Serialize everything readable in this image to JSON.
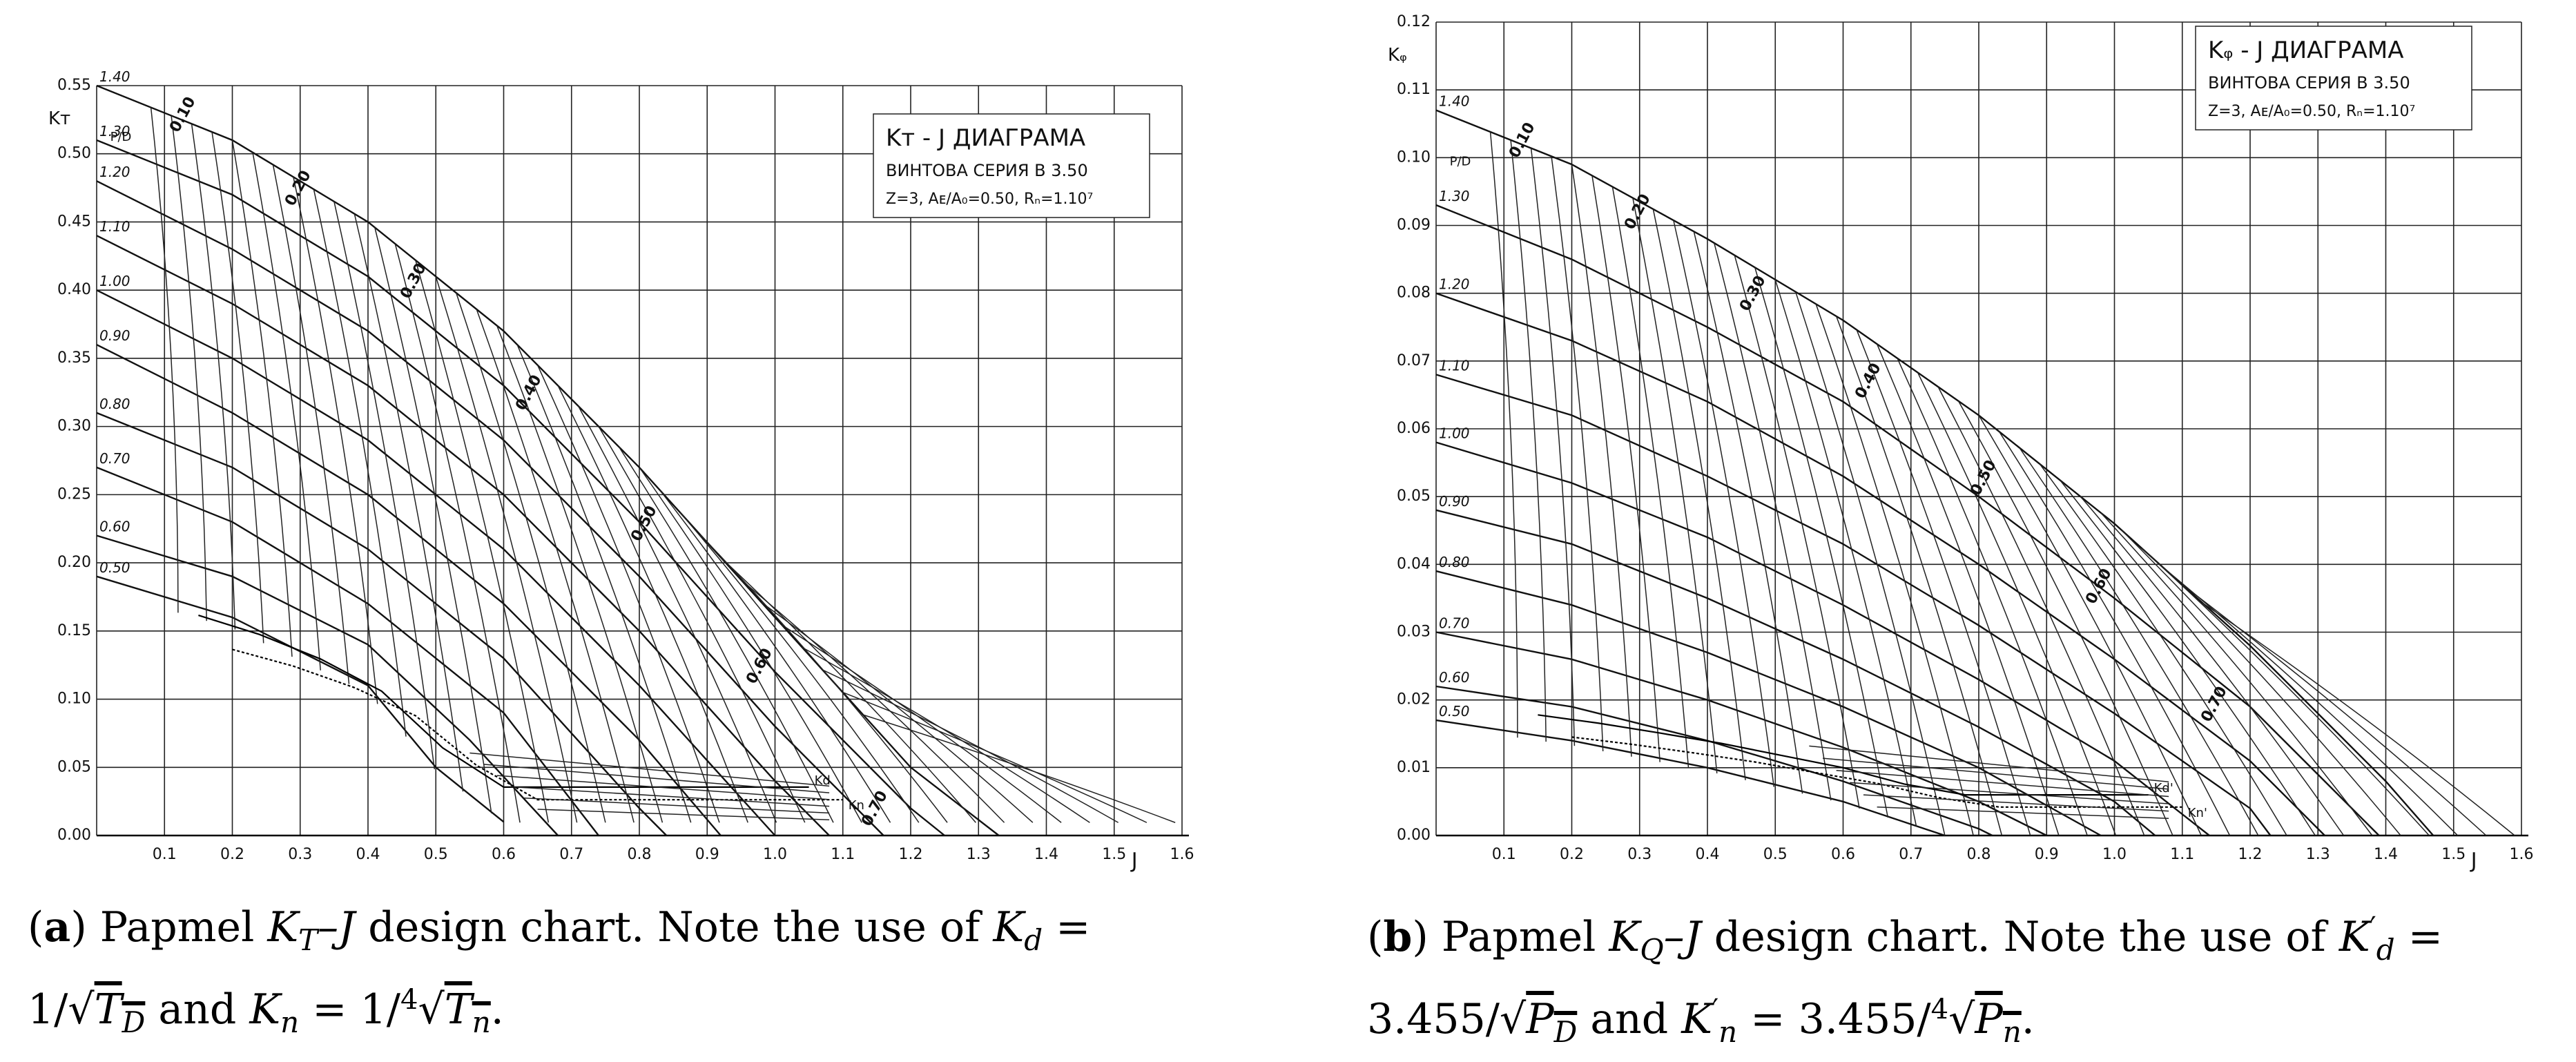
{
  "charts": [
    {
      "id": "a",
      "caption": {
        "letter": "a",
        "text_1": " Papmel ",
        "k": "K",
        "k_sub": "T",
        "dash_j": "–J",
        "text_2": " design chart. Note the use of ",
        "kd": "K",
        "kd_sub": "d",
        "eq1": " = ",
        "line2_a": "1/",
        "root_arg_1": "T",
        "root_arg_1_sub": "D",
        "and": " and ",
        "kn": "K",
        "kn_sub": "n",
        "eq2": " = 1/",
        "root4_index": "4",
        "root_arg_2": "T",
        "root_arg_2_sub": "n",
        "end": "."
      },
      "legend": {
        "title": "Kᴛ - J  ДИАГРАМА",
        "line2": "ВИНТОВА  СЕРИЯ   B 3.50",
        "line3": "Z=3,  Aᴇ/A₀=0.50,  Rₙ=1.10⁷"
      },
      "chart_data": {
        "type": "line",
        "xlabel": "J",
        "ylabel": "Kᴛ",
        "xlim": [
          0,
          1.6
        ],
        "ylim": [
          0,
          0.55
        ],
        "x_ticks": [
          "0.1",
          "0.2",
          "0.3",
          "0.4",
          "0.5",
          "0.6",
          "0.7",
          "0.8",
          "0.9",
          "1.0",
          "1.1",
          "1.2",
          "1.3",
          "1.4",
          "1.5",
          "1.6"
        ],
        "y_ticks": [
          "0.00",
          "0.05",
          "0.10",
          "0.15",
          "0.20",
          "0.25",
          "0.30",
          "0.35",
          "0.40",
          "0.45",
          "0.50",
          "0.55"
        ],
        "pd_label": "P/D",
        "pd_values": [
          "0.50",
          "0.60",
          "0.70",
          "0.80",
          "0.90",
          "1.00",
          "1.10",
          "1.20",
          "1.30",
          "1.40"
        ],
        "eta_labels": [
          "0.10",
          "0.20",
          "0.30",
          "0.40",
          "0.50",
          "0.60",
          "0.70"
        ],
        "kd_label": "Kd",
        "kn_label": "Kn",
        "series": [
          {
            "name": "0.50",
            "values": [
              [
                0.0,
                0.19
              ],
              [
                0.2,
                0.16
              ],
              [
                0.4,
                0.11
              ],
              [
                0.5,
                0.05
              ],
              [
                0.6,
                0.01
              ]
            ]
          },
          {
            "name": "0.60",
            "values": [
              [
                0.0,
                0.22
              ],
              [
                0.2,
                0.19
              ],
              [
                0.4,
                0.14
              ],
              [
                0.55,
                0.07
              ],
              [
                0.68,
                0.0
              ]
            ]
          },
          {
            "name": "0.70",
            "values": [
              [
                0.0,
                0.27
              ],
              [
                0.2,
                0.23
              ],
              [
                0.4,
                0.17
              ],
              [
                0.6,
                0.09
              ],
              [
                0.74,
                0.0
              ]
            ]
          },
          {
            "name": "0.80",
            "values": [
              [
                0.0,
                0.31
              ],
              [
                0.2,
                0.27
              ],
              [
                0.4,
                0.21
              ],
              [
                0.6,
                0.13
              ],
              [
                0.8,
                0.02
              ],
              [
                0.84,
                0.0
              ]
            ]
          },
          {
            "name": "0.90",
            "values": [
              [
                0.0,
                0.36
              ],
              [
                0.2,
                0.31
              ],
              [
                0.4,
                0.25
              ],
              [
                0.6,
                0.17
              ],
              [
                0.8,
                0.07
              ],
              [
                0.92,
                0.0
              ]
            ]
          },
          {
            "name": "1.00",
            "values": [
              [
                0.0,
                0.4
              ],
              [
                0.2,
                0.35
              ],
              [
                0.4,
                0.29
              ],
              [
                0.6,
                0.21
              ],
              [
                0.8,
                0.11
              ],
              [
                1.0,
                0.0
              ]
            ]
          },
          {
            "name": "1.10",
            "values": [
              [
                0.0,
                0.44
              ],
              [
                0.2,
                0.39
              ],
              [
                0.4,
                0.33
              ],
              [
                0.6,
                0.25
              ],
              [
                0.8,
                0.15
              ],
              [
                1.0,
                0.04
              ],
              [
                1.08,
                0.0
              ]
            ]
          },
          {
            "name": "1.20",
            "values": [
              [
                0.0,
                0.48
              ],
              [
                0.2,
                0.43
              ],
              [
                0.4,
                0.37
              ],
              [
                0.6,
                0.29
              ],
              [
                0.8,
                0.19
              ],
              [
                1.0,
                0.08
              ],
              [
                1.16,
                0.0
              ]
            ]
          },
          {
            "name": "1.30",
            "values": [
              [
                0.0,
                0.51
              ],
              [
                0.2,
                0.47
              ],
              [
                0.4,
                0.41
              ],
              [
                0.6,
                0.33
              ],
              [
                0.8,
                0.23
              ],
              [
                1.0,
                0.12
              ],
              [
                1.2,
                0.02
              ],
              [
                1.25,
                0.0
              ]
            ]
          },
          {
            "name": "1.40",
            "values": [
              [
                0.0,
                0.55
              ],
              [
                0.2,
                0.51
              ],
              [
                0.4,
                0.45
              ],
              [
                0.6,
                0.37
              ],
              [
                0.8,
                0.27
              ],
              [
                1.0,
                0.16
              ],
              [
                1.2,
                0.05
              ],
              [
                1.33,
                0.0
              ]
            ]
          }
        ]
      }
    },
    {
      "id": "b",
      "caption": {
        "letter": "b",
        "text_1": " Papmel ",
        "k": "K",
        "k_sub": "Q",
        "dash_j": "–J",
        "text_2": " design chart. Note the use of ",
        "kd": "K",
        "kd_sub": "d",
        "kd_prime": "′",
        "eq1": " = ",
        "line2_a": "3.455/",
        "root_arg_1": "P",
        "root_arg_1_sub": "D",
        "and": " and ",
        "kn": "K",
        "kn_sub": "n",
        "kn_prime": "′",
        "eq2": " = 3.455/",
        "root4_index": "4",
        "root_arg_2": "P",
        "root_arg_2_sub": "n",
        "end": "."
      },
      "legend": {
        "title": "Kᵩ - J  ДИАГРАМА",
        "line2": "ВИНТОВА  СЕРИЯ   B 3.50",
        "line3": "Z=3,  Aᴇ/A₀=0.50,  Rₙ=1.10⁷"
      },
      "chart_data": {
        "type": "line",
        "xlabel": "J",
        "ylabel": "Kᵩ",
        "xlim": [
          0,
          1.6
        ],
        "ylim": [
          0,
          0.12
        ],
        "x_ticks": [
          "0.1",
          "0.2",
          "0.3",
          "0.4",
          "0.5",
          "0.6",
          "0.7",
          "0.8",
          "0.9",
          "1.0",
          "1.1",
          "1.2",
          "1.3",
          "1.4",
          "1.5",
          "1.6"
        ],
        "y_ticks": [
          "0.00",
          "0.01",
          "0.02",
          "0.03",
          "0.04",
          "0.05",
          "0.06",
          "0.07",
          "0.08",
          "0.09",
          "0.10",
          "0.11",
          "0.12"
        ],
        "pd_label": "P/D",
        "pd_values": [
          "0.50",
          "0.60",
          "0.70",
          "0.80",
          "0.90",
          "1.00",
          "1.10",
          "1.20",
          "1.30",
          "1.40"
        ],
        "eta_labels": [
          "0.10",
          "0.20",
          "0.30",
          "0.40",
          "0.50",
          "0.60",
          "0.70"
        ],
        "kd_label": "Kd'",
        "kn_label": "Kn'",
        "series": [
          {
            "name": "0.50",
            "values": [
              [
                0.0,
                0.017
              ],
              [
                0.2,
                0.014
              ],
              [
                0.4,
                0.01
              ],
              [
                0.6,
                0.005
              ],
              [
                0.75,
                0.0
              ]
            ]
          },
          {
            "name": "0.60",
            "values": [
              [
                0.0,
                0.022
              ],
              [
                0.2,
                0.019
              ],
              [
                0.4,
                0.014
              ],
              [
                0.6,
                0.008
              ],
              [
                0.8,
                0.001
              ],
              [
                0.82,
                0.0
              ]
            ]
          },
          {
            "name": "0.70",
            "values": [
              [
                0.0,
                0.03
              ],
              [
                0.2,
                0.026
              ],
              [
                0.4,
                0.02
              ],
              [
                0.6,
                0.013
              ],
              [
                0.8,
                0.005
              ],
              [
                0.9,
                0.0
              ]
            ]
          },
          {
            "name": "0.80",
            "values": [
              [
                0.0,
                0.039
              ],
              [
                0.2,
                0.034
              ],
              [
                0.4,
                0.027
              ],
              [
                0.6,
                0.019
              ],
              [
                0.8,
                0.01
              ],
              [
                0.98,
                0.0
              ]
            ]
          },
          {
            "name": "0.90",
            "values": [
              [
                0.0,
                0.048
              ],
              [
                0.2,
                0.043
              ],
              [
                0.4,
                0.035
              ],
              [
                0.6,
                0.026
              ],
              [
                0.8,
                0.016
              ],
              [
                1.0,
                0.005
              ],
              [
                1.06,
                0.0
              ]
            ]
          },
          {
            "name": "1.00",
            "values": [
              [
                0.0,
                0.058
              ],
              [
                0.2,
                0.052
              ],
              [
                0.4,
                0.044
              ],
              [
                0.6,
                0.034
              ],
              [
                0.8,
                0.023
              ],
              [
                1.0,
                0.011
              ],
              [
                1.14,
                0.0
              ]
            ]
          },
          {
            "name": "1.10",
            "values": [
              [
                0.0,
                0.068
              ],
              [
                0.2,
                0.062
              ],
              [
                0.4,
                0.053
              ],
              [
                0.6,
                0.043
              ],
              [
                0.8,
                0.031
              ],
              [
                1.0,
                0.018
              ],
              [
                1.2,
                0.004
              ],
              [
                1.23,
                0.0
              ]
            ]
          },
          {
            "name": "1.20",
            "values": [
              [
                0.0,
                0.08
              ],
              [
                0.2,
                0.073
              ],
              [
                0.4,
                0.064
              ],
              [
                0.6,
                0.053
              ],
              [
                0.8,
                0.04
              ],
              [
                1.0,
                0.026
              ],
              [
                1.2,
                0.011
              ],
              [
                1.31,
                0.0
              ]
            ]
          },
          {
            "name": "1.30",
            "values": [
              [
                0.0,
                0.093
              ],
              [
                0.2,
                0.085
              ],
              [
                0.4,
                0.075
              ],
              [
                0.6,
                0.064
              ],
              [
                0.8,
                0.05
              ],
              [
                1.0,
                0.035
              ],
              [
                1.2,
                0.019
              ],
              [
                1.39,
                0.0
              ]
            ]
          },
          {
            "name": "1.40",
            "values": [
              [
                0.0,
                0.107
              ],
              [
                0.2,
                0.099
              ],
              [
                0.4,
                0.088
              ],
              [
                0.6,
                0.076
              ],
              [
                0.8,
                0.062
              ],
              [
                1.0,
                0.046
              ],
              [
                1.2,
                0.028
              ],
              [
                1.4,
                0.008
              ],
              [
                1.47,
                0.0
              ]
            ]
          }
        ]
      }
    }
  ]
}
